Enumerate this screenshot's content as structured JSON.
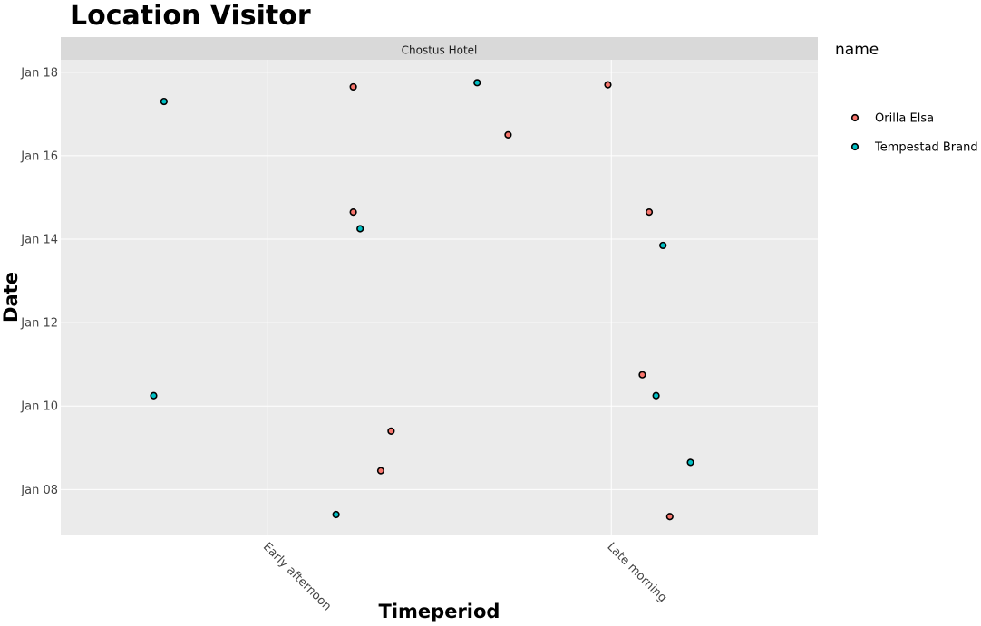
{
  "chart_data": {
    "type": "scatter",
    "title": "Location Visitor",
    "facet": "Chostus Hotel",
    "xlabel": "Timeperiod",
    "ylabel": "Date",
    "categories": [
      "Early afternoon",
      "Late morning"
    ],
    "y_ticks": [
      "Jan 08",
      "Jan 10",
      "Jan 12",
      "Jan 14",
      "Jan 16",
      "Jan 18"
    ],
    "y_tick_values": [
      8,
      10,
      12,
      14,
      16,
      18
    ],
    "ylim": [
      6.9,
      18.3
    ],
    "xlim": [
      0.4,
      2.6
    ],
    "grid": true,
    "legend": {
      "title": "name",
      "placement": "right"
    },
    "series": [
      {
        "name": "Orilla Elsa",
        "color": "#F8766D",
        "points": [
          {
            "x": 1.25,
            "y": 17.65
          },
          {
            "x": 1.25,
            "y": 14.65
          },
          {
            "x": 1.36,
            "y": 9.4
          },
          {
            "x": 1.33,
            "y": 8.45
          },
          {
            "x": 1.7,
            "y": 16.5
          },
          {
            "x": 1.99,
            "y": 17.7
          },
          {
            "x": 2.11,
            "y": 14.65
          },
          {
            "x": 2.09,
            "y": 10.75
          },
          {
            "x": 2.17,
            "y": 7.35
          }
        ]
      },
      {
        "name": "Tempestad Brand",
        "color": "#00BFC4",
        "points": [
          {
            "x": 0.7,
            "y": 17.3
          },
          {
            "x": 0.67,
            "y": 10.25
          },
          {
            "x": 1.27,
            "y": 14.25
          },
          {
            "x": 1.2,
            "y": 7.4
          },
          {
            "x": 1.61,
            "y": 17.75
          },
          {
            "x": 2.15,
            "y": 13.85
          },
          {
            "x": 2.13,
            "y": 10.25
          },
          {
            "x": 2.23,
            "y": 8.65
          }
        ]
      }
    ]
  }
}
